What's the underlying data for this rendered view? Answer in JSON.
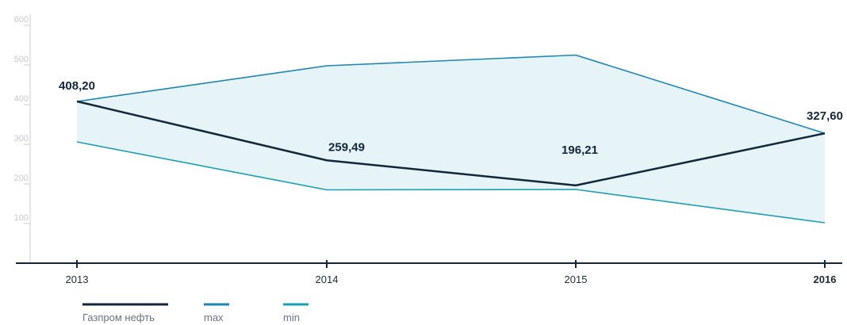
{
  "chart_data": {
    "type": "line",
    "categories": [
      "2013",
      "2014",
      "2015",
      "2016"
    ],
    "highlight_category": "2016",
    "ylim": [
      0,
      600
    ],
    "yticks": [
      100,
      200,
      300,
      400,
      500,
      600
    ],
    "grid": false,
    "series": [
      {
        "name": "Газпром нефть",
        "values": [
          408.2,
          259.49,
          196.21,
          327.6
        ],
        "color": "#13273c",
        "labels": [
          "408,20",
          "259,49",
          "196,21",
          "327,60"
        ]
      },
      {
        "name": "max",
        "values": [
          408,
          498,
          525,
          327.6
        ],
        "color": "#1a87b8"
      },
      {
        "name": "min",
        "values": [
          306,
          185,
          186,
          102
        ],
        "color": "#1ba0b3"
      }
    ],
    "band_fill": "#e6f4f8",
    "legend_position": "bottom-left"
  }
}
